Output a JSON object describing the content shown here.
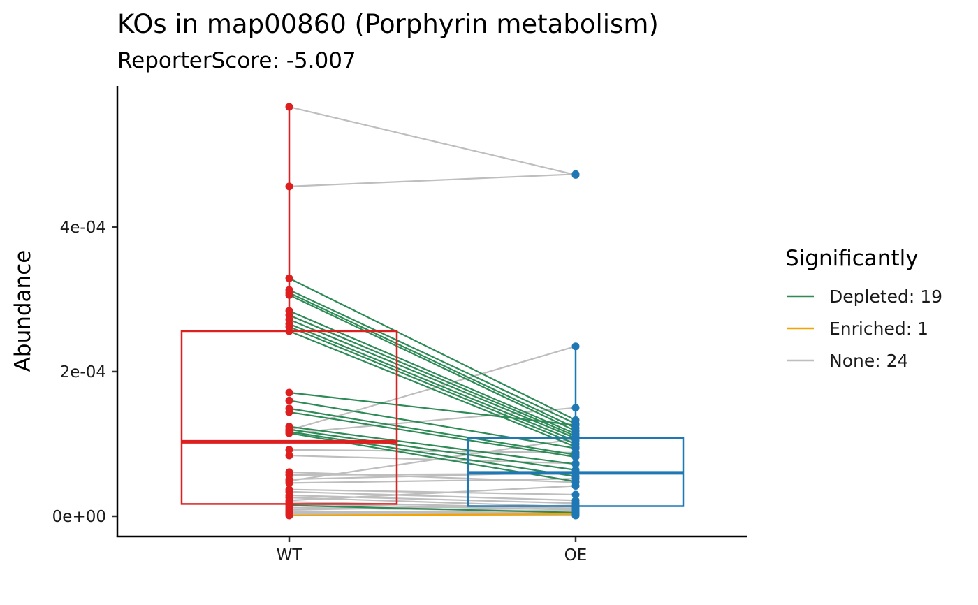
{
  "colors": {
    "WT": "#DE1F1F",
    "OE": "#1F78B4",
    "Depleted": "#2E8B57",
    "Enriched": "#F5A300",
    "None": "#BEBEBE"
  },
  "chart_data": {
    "type": "box-paired",
    "title": "KOs in map00860 (Porphyrin metabolism)",
    "subtitle": "ReporterScore: -5.007",
    "xlabel": "",
    "ylabel": "Abundance",
    "categories": [
      "WT",
      "OE"
    ],
    "ylim": [
      -2.8e-05,
      0.000595
    ],
    "yticks": [
      {
        "value": 0,
        "label": "0e+00"
      },
      {
        "value": 0.0002,
        "label": "2e-04"
      },
      {
        "value": 0.0004,
        "label": "4e-04"
      }
    ],
    "grid": false,
    "legend": {
      "title": "Significantly",
      "position": "right",
      "entries": [
        {
          "key": "Depleted",
          "label": "Depleted: 19"
        },
        {
          "key": "Enriched",
          "label": "Enriched: 1"
        },
        {
          "key": "None",
          "label": "None: 24"
        }
      ]
    },
    "boxes": [
      {
        "group": "WT",
        "q1": 1.7e-05,
        "median": 0.000103,
        "q3": 0.000256,
        "whisker_low": 0,
        "whisker_high": 0.000566
      },
      {
        "group": "OE",
        "q1": 1.4e-05,
        "median": 6e-05,
        "q3": 0.000108,
        "whisker_low": 1e-06,
        "whisker_high": 0.000235
      }
    ],
    "series": [
      {
        "sig": "Depleted",
        "values": [
          0.000329,
          0.000133
        ]
      },
      {
        "sig": "Depleted",
        "values": [
          0.000313,
          0.000128
        ]
      },
      {
        "sig": "Depleted",
        "values": [
          0.000309,
          0.000122
        ]
      },
      {
        "sig": "Depleted",
        "values": [
          0.000306,
          0.000118
        ]
      },
      {
        "sig": "Depleted",
        "values": [
          0.000284,
          0.000114
        ]
      },
      {
        "sig": "Depleted",
        "values": [
          0.000278,
          0.000111
        ]
      },
      {
        "sig": "Depleted",
        "values": [
          0.000272,
          0.000108
        ]
      },
      {
        "sig": "Depleted",
        "values": [
          0.000266,
          0.000104
        ]
      },
      {
        "sig": "Depleted",
        "values": [
          0.000262,
          0.0001
        ]
      },
      {
        "sig": "Depleted",
        "values": [
          0.000256,
          9.6e-05
        ]
      },
      {
        "sig": "Depleted",
        "values": [
          0.000171,
          0.000126
        ]
      },
      {
        "sig": "Depleted",
        "values": [
          0.00016,
          9.4e-05
        ]
      },
      {
        "sig": "Depleted",
        "values": [
          0.000149,
          8.5e-05
        ]
      },
      {
        "sig": "Depleted",
        "values": [
          0.000144,
          8.2e-05
        ]
      },
      {
        "sig": "Depleted",
        "values": [
          0.000124,
          7.2e-05
        ]
      },
      {
        "sig": "Depleted",
        "values": [
          0.00012,
          6.4e-05
        ]
      },
      {
        "sig": "Depleted",
        "values": [
          0.000117,
          5.5e-05
        ]
      },
      {
        "sig": "Depleted",
        "values": [
          0.000115,
          4.8e-05
        ]
      },
      {
        "sig": "Depleted",
        "values": [
          1.5e-05,
          5e-06
        ]
      },
      {
        "sig": "Enriched",
        "values": [
          1e-06,
          3e-06
        ]
      },
      {
        "sig": "None",
        "values": [
          0.000566,
          0.000472
        ]
      },
      {
        "sig": "None",
        "values": [
          0.000456,
          0.000473
        ]
      },
      {
        "sig": "None",
        "values": [
          0.000119,
          0.000235
        ]
      },
      {
        "sig": "None",
        "values": [
          0.000115,
          0.00015
        ]
      },
      {
        "sig": "None",
        "values": [
          9.2e-05,
          8.8e-05
        ]
      },
      {
        "sig": "None",
        "values": [
          8.4e-05,
          7.3e-05
        ]
      },
      {
        "sig": "None",
        "values": [
          6.1e-05,
          4.7e-05
        ]
      },
      {
        "sig": "None",
        "values": [
          5.7e-05,
          5.9e-05
        ]
      },
      {
        "sig": "None",
        "values": [
          5.1e-05,
          6.1e-05
        ]
      },
      {
        "sig": "None",
        "values": [
          4.9e-05,
          0.000107
        ]
      },
      {
        "sig": "None",
        "values": [
          4.6e-05,
          5.2e-05
        ]
      },
      {
        "sig": "None",
        "values": [
          3.7e-05,
          3e-05
        ]
      },
      {
        "sig": "None",
        "values": [
          3.4e-05,
          2.2e-05
        ]
      },
      {
        "sig": "None",
        "values": [
          2.9e-05,
          1.8e-05
        ]
      },
      {
        "sig": "None",
        "values": [
          2.6e-05,
          1.3e-05
        ]
      },
      {
        "sig": "None",
        "values": [
          2.2e-05,
          4.2e-05
        ]
      },
      {
        "sig": "None",
        "values": [
          2e-05,
          1.1e-05
        ]
      },
      {
        "sig": "None",
        "values": [
          1.7e-05,
          9e-06
        ]
      },
      {
        "sig": "None",
        "values": [
          1.2e-05,
          7e-06
        ]
      },
      {
        "sig": "None",
        "values": [
          9e-06,
          1.5e-05
        ]
      },
      {
        "sig": "None",
        "values": [
          7e-06,
          5e-06
        ]
      },
      {
        "sig": "None",
        "values": [
          5e-06,
          4e-06
        ]
      },
      {
        "sig": "None",
        "values": [
          3e-06,
          2e-06
        ]
      },
      {
        "sig": "None",
        "values": [
          2e-06,
          1e-06
        ]
      }
    ]
  }
}
